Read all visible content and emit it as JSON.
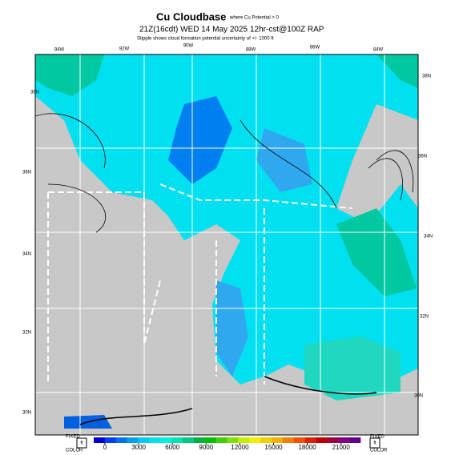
{
  "header": {
    "title": "Cu Cloudbase",
    "title_note": "where Cu Potential > 0",
    "time": "21Z(16cdt) WED 14 May 2025",
    "model": "12hr-cst@100Z RAP",
    "subtitle": "Stipple shows cloud formation potential uncertainty of +/- 1000 ft"
  },
  "map": {
    "lon_labels": [
      "94W",
      "92W",
      "90W",
      "88W",
      "86W",
      "84W"
    ],
    "lat_labels_left": [
      "38N",
      "36N",
      "34N",
      "32N",
      "30N"
    ],
    "lat_labels_right": [
      "38N",
      "36N",
      "34N",
      "32N",
      "30N"
    ]
  },
  "colorbar": {
    "ticks": [
      0,
      3000,
      6000,
      9000,
      12000,
      15000,
      18000,
      21000
    ],
    "left_box": {
      "top": "FIXED",
      "unit": "ft",
      "bottom": "COLOR"
    },
    "right_box": {
      "top": "FIXED",
      "unit": "ft",
      "bottom": "COLOR"
    }
  }
}
